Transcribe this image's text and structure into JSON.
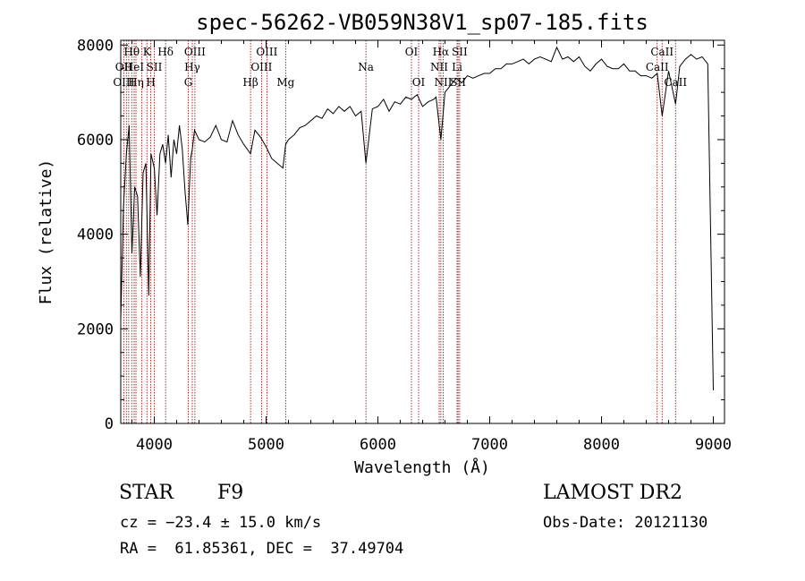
{
  "chart_data": {
    "type": "line",
    "title": "spec-56262-VB059N38V1_sp07-185.fits",
    "xlabel": "Wavelength (Å)",
    "ylabel": "Flux (relative)",
    "xlim": [
      3700,
      9100
    ],
    "ylim": [
      0,
      8100
    ],
    "x_ticks": [
      4000,
      5000,
      6000,
      7000,
      8000,
      9000
    ],
    "y_ticks": [
      0,
      2000,
      4000,
      6000,
      8000
    ],
    "grid": false,
    "line_color": "#000000",
    "marker_color": "#8b0000",
    "series": [
      {
        "x": [
          3700,
          3725,
          3750,
          3775,
          3800,
          3825,
          3850,
          3875,
          3900,
          3925,
          3950,
          3970,
          4000,
          4025,
          4050,
          4075,
          4101,
          4125,
          4150,
          4175,
          4200,
          4225,
          4250,
          4275,
          4300,
          4325,
          4340,
          4360,
          4400,
          4450,
          4500,
          4550,
          4600,
          4650,
          4700,
          4750,
          4800,
          4861,
          4900,
          4950,
          5000,
          5050,
          5100,
          5150,
          5175,
          5200,
          5250,
          5300,
          5350,
          5400,
          5450,
          5500,
          5550,
          5600,
          5650,
          5700,
          5750,
          5800,
          5850,
          5893,
          5950,
          6000,
          6050,
          6100,
          6150,
          6200,
          6250,
          6300,
          6350,
          6400,
          6450,
          6500,
          6520,
          6563,
          6600,
          6650,
          6700,
          6750,
          6800,
          6850,
          6900,
          6950,
          7000,
          7050,
          7100,
          7150,
          7200,
          7250,
          7300,
          7350,
          7400,
          7450,
          7500,
          7550,
          7600,
          7650,
          7700,
          7750,
          7800,
          7850,
          7900,
          7950,
          8000,
          8050,
          8100,
          8150,
          8200,
          8250,
          8300,
          8350,
          8400,
          8450,
          8498,
          8542,
          8600,
          8662,
          8700,
          8750,
          8800,
          8850,
          8900,
          8950,
          9000
        ],
        "y": [
          2200,
          4600,
          5700,
          6300,
          3600,
          5000,
          4800,
          3100,
          5300,
          5500,
          2700,
          5700,
          5400,
          4400,
          5700,
          5900,
          5500,
          6100,
          5200,
          6000,
          5700,
          6300,
          5800,
          4900,
          4200,
          5600,
          5800,
          6200,
          6000,
          5950,
          6050,
          6300,
          6000,
          5950,
          6400,
          6100,
          5900,
          5700,
          6200,
          6050,
          5850,
          5600,
          5500,
          5400,
          5900,
          6000,
          6100,
          6250,
          6300,
          6400,
          6500,
          6450,
          6650,
          6550,
          6700,
          6600,
          6700,
          6500,
          6600,
          5500,
          6650,
          6700,
          6850,
          6600,
          6800,
          6750,
          6900,
          6850,
          6950,
          6700,
          6800,
          6850,
          6900,
          6000,
          7000,
          7150,
          7300,
          7200,
          7350,
          7300,
          7350,
          7400,
          7400,
          7500,
          7500,
          7600,
          7600,
          7650,
          7700,
          7600,
          7700,
          7750,
          7700,
          7650,
          7950,
          7700,
          7750,
          7650,
          7750,
          7550,
          7450,
          7600,
          7700,
          7550,
          7500,
          7500,
          7600,
          7450,
          7450,
          7350,
          7350,
          7300,
          7400,
          6500,
          7450,
          6750,
          7550,
          7700,
          7800,
          7700,
          7750,
          7600,
          700
        ]
      }
    ],
    "annotations": [
      {
        "label": "Hθ",
        "x": 3798,
        "row": 1
      },
      {
        "label": "OII",
        "x": 3727,
        "row": 2
      },
      {
        "label": "OIII",
        "x": 3727,
        "row": 3
      },
      {
        "label": "HeI",
        "x": 3820,
        "row": 2
      },
      {
        "label": "Hη",
        "x": 3836,
        "row": 3
      },
      {
        "label": "K",
        "x": 3934,
        "row": 1
      },
      {
        "label": "SII",
        "x": 4000,
        "row": 2
      },
      {
        "label": "H",
        "x": 3969,
        "row": 3
      },
      {
        "label": "Hδ",
        "x": 4101,
        "row": 1
      },
      {
        "label": "OIII",
        "x": 4363,
        "row": 1
      },
      {
        "label": "Hγ",
        "x": 4340,
        "row": 2
      },
      {
        "label": "G",
        "x": 4304,
        "row": 3
      },
      {
        "label": "OIII",
        "x": 5007,
        "row": 1
      },
      {
        "label": "OIII",
        "x": 4959,
        "row": 2
      },
      {
        "label": "Hβ",
        "x": 4861,
        "row": 3
      },
      {
        "label": "Mg",
        "x": 5175,
        "row": 3
      },
      {
        "label": "Na",
        "x": 5893,
        "row": 2
      },
      {
        "label": "OI",
        "x": 6300,
        "row": 1
      },
      {
        "label": "OI",
        "x": 6364,
        "row": 3
      },
      {
        "label": "Hα",
        "x": 6563,
        "row": 1
      },
      {
        "label": "SII",
        "x": 6731,
        "row": 1
      },
      {
        "label": "NII",
        "x": 6548,
        "row": 2
      },
      {
        "label": "Li",
        "x": 6708,
        "row": 2
      },
      {
        "label": "NII",
        "x": 6584,
        "row": 3
      },
      {
        "label": "SII",
        "x": 6717,
        "row": 3
      },
      {
        "label": "CaII",
        "x": 8542,
        "row": 1
      },
      {
        "label": "CaII",
        "x": 8498,
        "row": 2
      },
      {
        "label": "CaII",
        "x": 8662,
        "row": 3
      }
    ],
    "marker_lines": [
      3727,
      3750,
      3771,
      3798,
      3820,
      3836,
      3889,
      3934,
      3969,
      4000,
      4101,
      4304,
      4340,
      4363,
      4861,
      4959,
      5007,
      5175,
      5893,
      6300,
      6364,
      6548,
      6563,
      6584,
      6708,
      6717,
      6731,
      8498,
      8542,
      8662
    ]
  },
  "info": {
    "object_class": "STAR",
    "subclass": "F9",
    "survey": "LAMOST DR2",
    "redshift_text": "cz = −23.4 ± 15.0 km/s",
    "obs_date_text": "Obs-Date: 20121130",
    "coords_text": "RA =  61.85361, DEC =  37.49704"
  }
}
